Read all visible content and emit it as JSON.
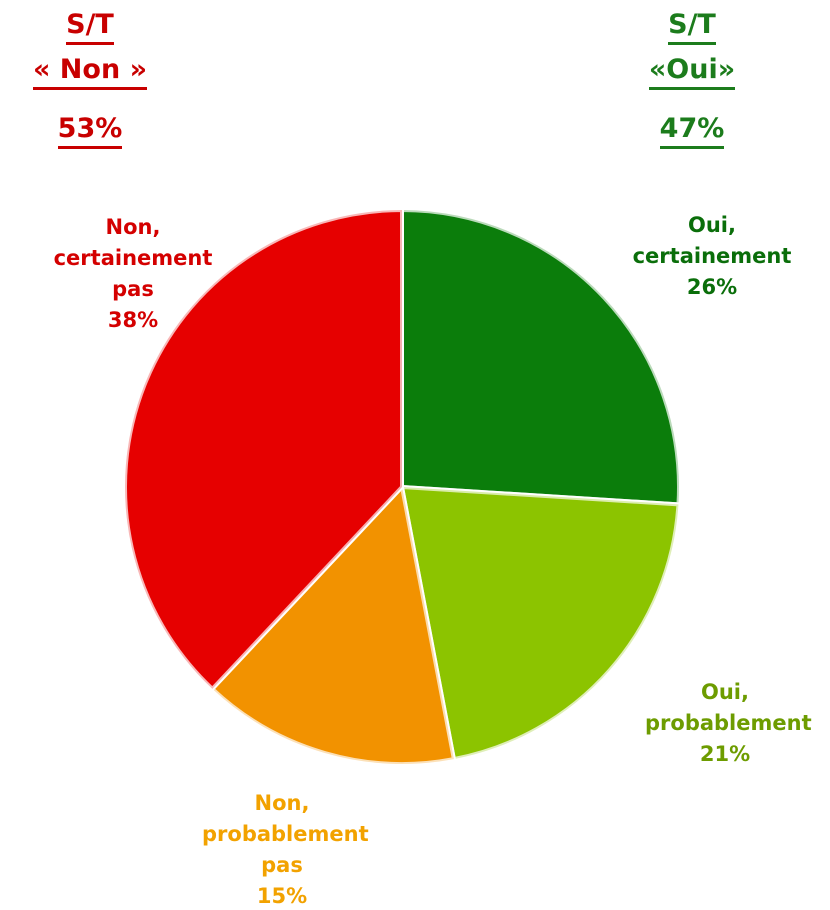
{
  "chart_data": {
    "type": "pie",
    "categories": [
      "Oui, certainement",
      "Oui, probablement",
      "Non, probablement pas",
      "Non, certainement pas"
    ],
    "values": [
      26,
      21,
      15,
      38
    ],
    "value_labels": [
      "26%",
      "21%",
      "15%",
      "38%"
    ],
    "colors": [
      "#0b7d0b",
      "#8cc400",
      "#f29200",
      "#e60000"
    ],
    "label_colors": [
      "#0a6e0a",
      "#6d9c00",
      "#f2a200",
      "#d40000"
    ],
    "subtotals": [
      {
        "title": "S/T",
        "label": "« Non »",
        "value_label": "53%",
        "color": "#c80000"
      },
      {
        "title": "S/T",
        "label": "«Oui»",
        "value_label": "47%",
        "color": "#1c7c1c"
      }
    ]
  }
}
